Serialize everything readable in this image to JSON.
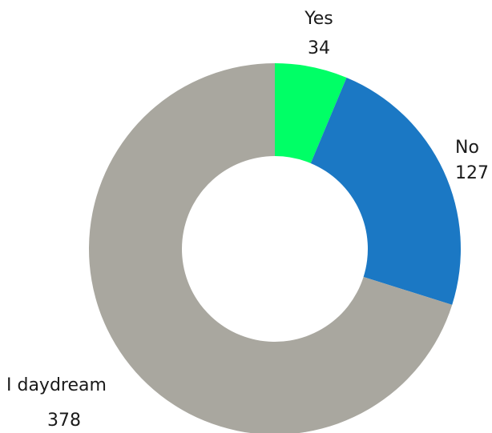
{
  "chart_data": {
    "type": "pie",
    "donut": true,
    "title": "",
    "legend": "none",
    "slices": [
      {
        "label": "Yes",
        "value": 34,
        "color": "#00FF66"
      },
      {
        "label": "No",
        "value": 127,
        "color": "#1B78C4"
      },
      {
        "label": "I daydream",
        "value": 378,
        "color": "#A9A79F"
      }
    ]
  }
}
